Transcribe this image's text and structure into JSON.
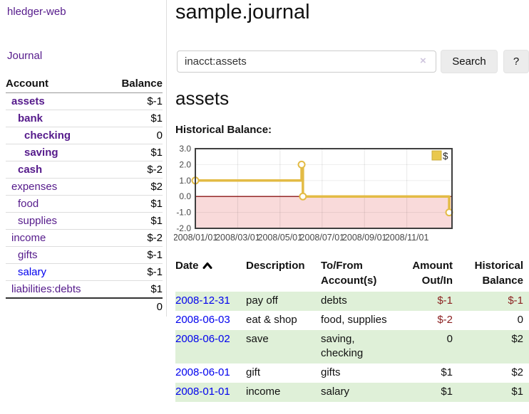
{
  "sidebar": {
    "brand": "hledger-web",
    "journal_link": "Journal",
    "accounts": {
      "header_account": "Account",
      "header_balance": "Balance",
      "rows": [
        {
          "name": "assets",
          "balance": "$-1"
        },
        {
          "name": "bank",
          "balance": "$1"
        },
        {
          "name": "checking",
          "balance": "0"
        },
        {
          "name": "saving",
          "balance": "$1"
        },
        {
          "name": "cash",
          "balance": "$-2"
        },
        {
          "name": "expenses",
          "balance": "$2"
        },
        {
          "name": "food",
          "balance": "$1"
        },
        {
          "name": "supplies",
          "balance": "$1"
        },
        {
          "name": "income",
          "balance": "$-2"
        },
        {
          "name": "gifts",
          "balance": "$-1"
        },
        {
          "name": "salary",
          "balance": "$-1"
        },
        {
          "name": "liabilities:debts",
          "balance": "$1"
        }
      ],
      "total": "0"
    }
  },
  "header": {
    "title": "sample.journal"
  },
  "search": {
    "value": "inacct:assets",
    "clear_icon": "×",
    "button_label": "Search",
    "help_label": "?"
  },
  "account_page": {
    "heading": "assets",
    "chart_title": "Historical Balance:"
  },
  "chart_data": {
    "type": "line",
    "title": "Historical Balance:",
    "step": true,
    "ylim": [
      -2.0,
      3.0
    ],
    "y_ticks": [
      3.0,
      2.0,
      1.0,
      0.0,
      -1.0,
      -2.0
    ],
    "x_ticks": [
      {
        "label": "2008/01/01",
        "x": 0.0
      },
      {
        "label": "2008/03/01",
        "x": 0.165
      },
      {
        "label": "2008/05/01",
        "x": 0.33
      },
      {
        "label": "2008/07/01",
        "x": 0.494
      },
      {
        "label": "2008/09/01",
        "x": 0.659
      },
      {
        "label": "2008/11/01",
        "x": 0.824
      }
    ],
    "series": [
      {
        "name": "$",
        "points": [
          {
            "date": "2008-01-01",
            "x": 0.0,
            "y": 1
          },
          {
            "date": "2008-06-01",
            "x": 0.414,
            "y": 2
          },
          {
            "date": "2008-06-03",
            "x": 0.419,
            "y": 0
          },
          {
            "date": "2008-12-31",
            "x": 0.989,
            "y": -1
          }
        ]
      }
    ],
    "legend": {
      "label": "$",
      "position": "top-right"
    },
    "negative_region_shaded": true,
    "grid": true
  },
  "register": {
    "headers": {
      "date": "Date",
      "description": "Description",
      "account": "To/From Account(s)",
      "amount": "Amount Out/In",
      "balance": "Historical Balance"
    },
    "rows": [
      {
        "date": "2008-12-31",
        "description": "pay off",
        "accounts": "debts",
        "amount": "$-1",
        "balance": "$-1"
      },
      {
        "date": "2008-06-03",
        "description": "eat & shop",
        "accounts": "food, supplies",
        "amount": "$-2",
        "balance": "0"
      },
      {
        "date": "2008-06-02",
        "description": "save",
        "accounts": "saving, checking",
        "amount": "0",
        "balance": "$2"
      },
      {
        "date": "2008-06-01",
        "description": "gift",
        "accounts": "gifts",
        "amount": "$1",
        "balance": "$2"
      },
      {
        "date": "2008-01-01",
        "description": "income",
        "accounts": "salary",
        "amount": "$1",
        "balance": "$1"
      }
    ]
  },
  "colors": {
    "link_visited_purple": "#551a8b",
    "link_blue": "#0000ee",
    "negative_strong": "#8b0000",
    "negative_soft": "#b36666",
    "register_negative": "#8b1f1f",
    "row_stripe_green": "#dff0d8",
    "chart_line_gold": "#e3bb45",
    "chart_negative_fill": "#f9dada",
    "chart_zero_line": "#8b1515",
    "chart_border": "#3f3f3f"
  }
}
